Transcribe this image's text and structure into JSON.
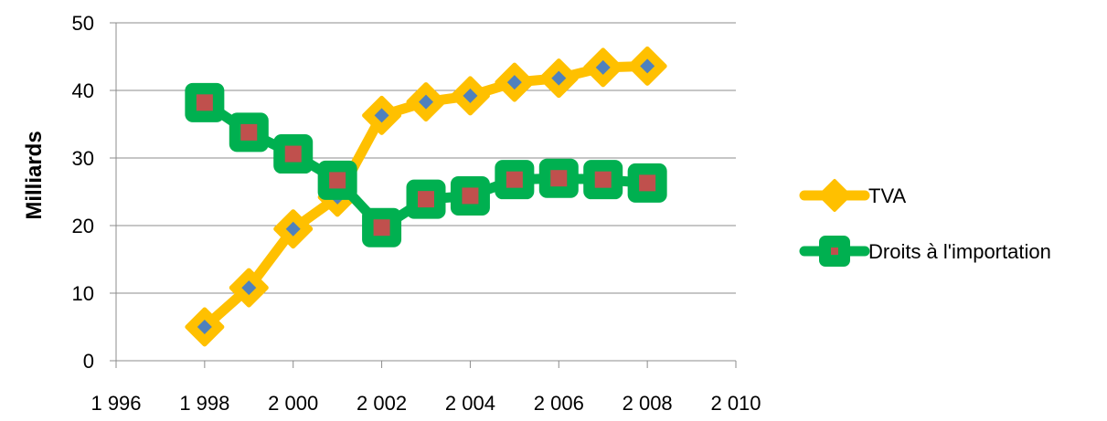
{
  "chart_data": {
    "type": "line",
    "title": "",
    "xlabel": "",
    "ylabel": "Milliards",
    "xlim": [
      1996,
      2010
    ],
    "ylim": [
      0,
      50
    ],
    "x_ticks": [
      1996,
      1998,
      2000,
      2002,
      2004,
      2006,
      2008,
      2010
    ],
    "x_tick_labels": [
      "1 996",
      "1 998",
      "2 000",
      "2 002",
      "2 004",
      "2 006",
      "2 008",
      "2 010"
    ],
    "y_ticks": [
      0,
      10,
      20,
      30,
      40,
      50
    ],
    "y_tick_labels": [
      "0",
      "10",
      "20",
      "30",
      "40",
      "50"
    ],
    "grid": "horizontal",
    "legend_position": "right",
    "series": [
      {
        "name": "TVA",
        "line_color": "#FFC000",
        "marker": "diamond",
        "marker_fill": "#4F81BD",
        "x": [
          1998,
          1999,
          2000,
          2001,
          2002,
          2003,
          2004,
          2005,
          2006,
          2007,
          2008
        ],
        "values": [
          5,
          10.8,
          19.5,
          24.2,
          36.3,
          38.3,
          39.2,
          41.2,
          41.8,
          43.4,
          43.6
        ]
      },
      {
        "name": "Droits à l'importation",
        "line_color": "#00B050",
        "marker": "square",
        "marker_fill": "#C0504D",
        "x": [
          1998,
          1999,
          2000,
          2001,
          2002,
          2003,
          2004,
          2005,
          2006,
          2007,
          2008
        ],
        "values": [
          38.2,
          33.8,
          30.6,
          26.7,
          19.7,
          23.9,
          24.4,
          26.8,
          27,
          26.8,
          26.3
        ]
      }
    ]
  }
}
